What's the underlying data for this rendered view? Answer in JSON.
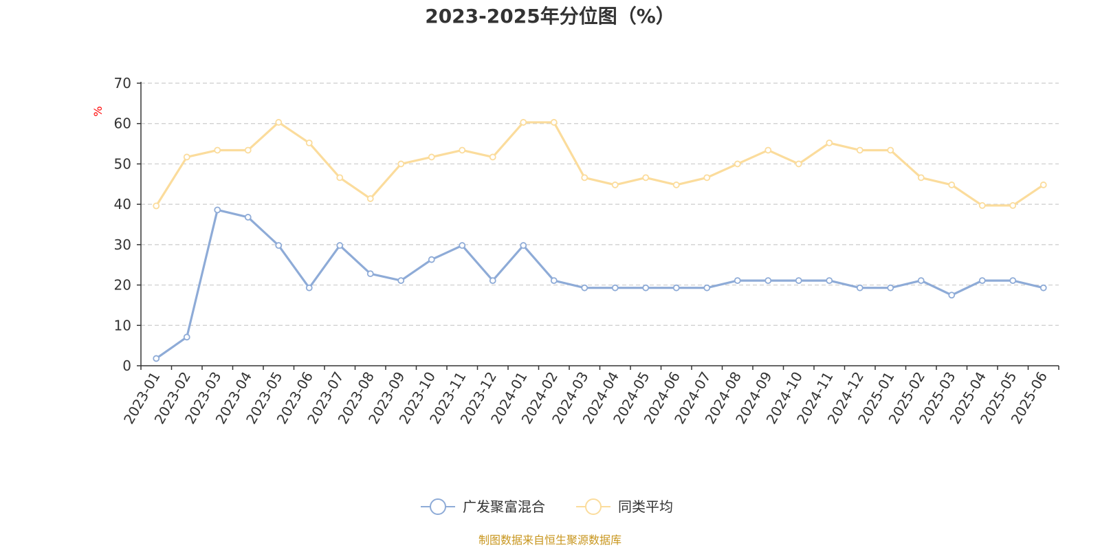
{
  "chart_data": {
    "type": "line",
    "title": "2023-2025年分位图（%）",
    "ylabel": "%",
    "ylim": [
      0,
      70
    ],
    "yticks": [
      "0",
      "10",
      "20",
      "30",
      "40",
      "50",
      "60",
      "70"
    ],
    "categories": [
      "2023-01",
      "2023-02",
      "2023-03",
      "2023-04",
      "2023-05",
      "2023-06",
      "2023-07",
      "2023-08",
      "2023-09",
      "2023-10",
      "2023-11",
      "2023-12",
      "2024-01",
      "2024-02",
      "2024-03",
      "2024-04",
      "2024-05",
      "2024-06",
      "2024-07",
      "2024-08",
      "2024-09",
      "2024-10",
      "2024-11",
      "2024-12",
      "2025-01",
      "2025-02",
      "2025-03",
      "2025-04",
      "2025-05",
      "2025-06"
    ],
    "series": [
      {
        "name": "广发聚富混合",
        "color": "#8eabd7",
        "values": [
          1.8,
          7.1,
          38.6,
          36.8,
          29.8,
          19.3,
          29.8,
          22.8,
          21.1,
          26.3,
          29.8,
          21.1,
          29.8,
          21.1,
          19.3,
          19.3,
          19.3,
          19.3,
          19.3,
          21.1,
          21.1,
          21.1,
          21.1,
          19.3,
          19.3,
          21.1,
          17.5,
          21.1,
          21.1,
          19.3
        ]
      },
      {
        "name": "同类平均",
        "color": "#fbdc9c",
        "values": [
          39.6,
          51.7,
          53.4,
          53.4,
          60.3,
          55.2,
          46.6,
          41.4,
          50.0,
          51.7,
          53.4,
          51.7,
          60.3,
          60.3,
          46.6,
          44.8,
          46.6,
          44.8,
          46.6,
          50.0,
          53.4,
          50.0,
          55.2,
          53.4,
          53.4,
          46.6,
          44.8,
          39.7,
          39.7,
          44.8
        ]
      }
    ],
    "grid": true,
    "legend_position": "bottom-center"
  },
  "footer": {
    "source": "制图数据来自恒生聚源数据库"
  }
}
